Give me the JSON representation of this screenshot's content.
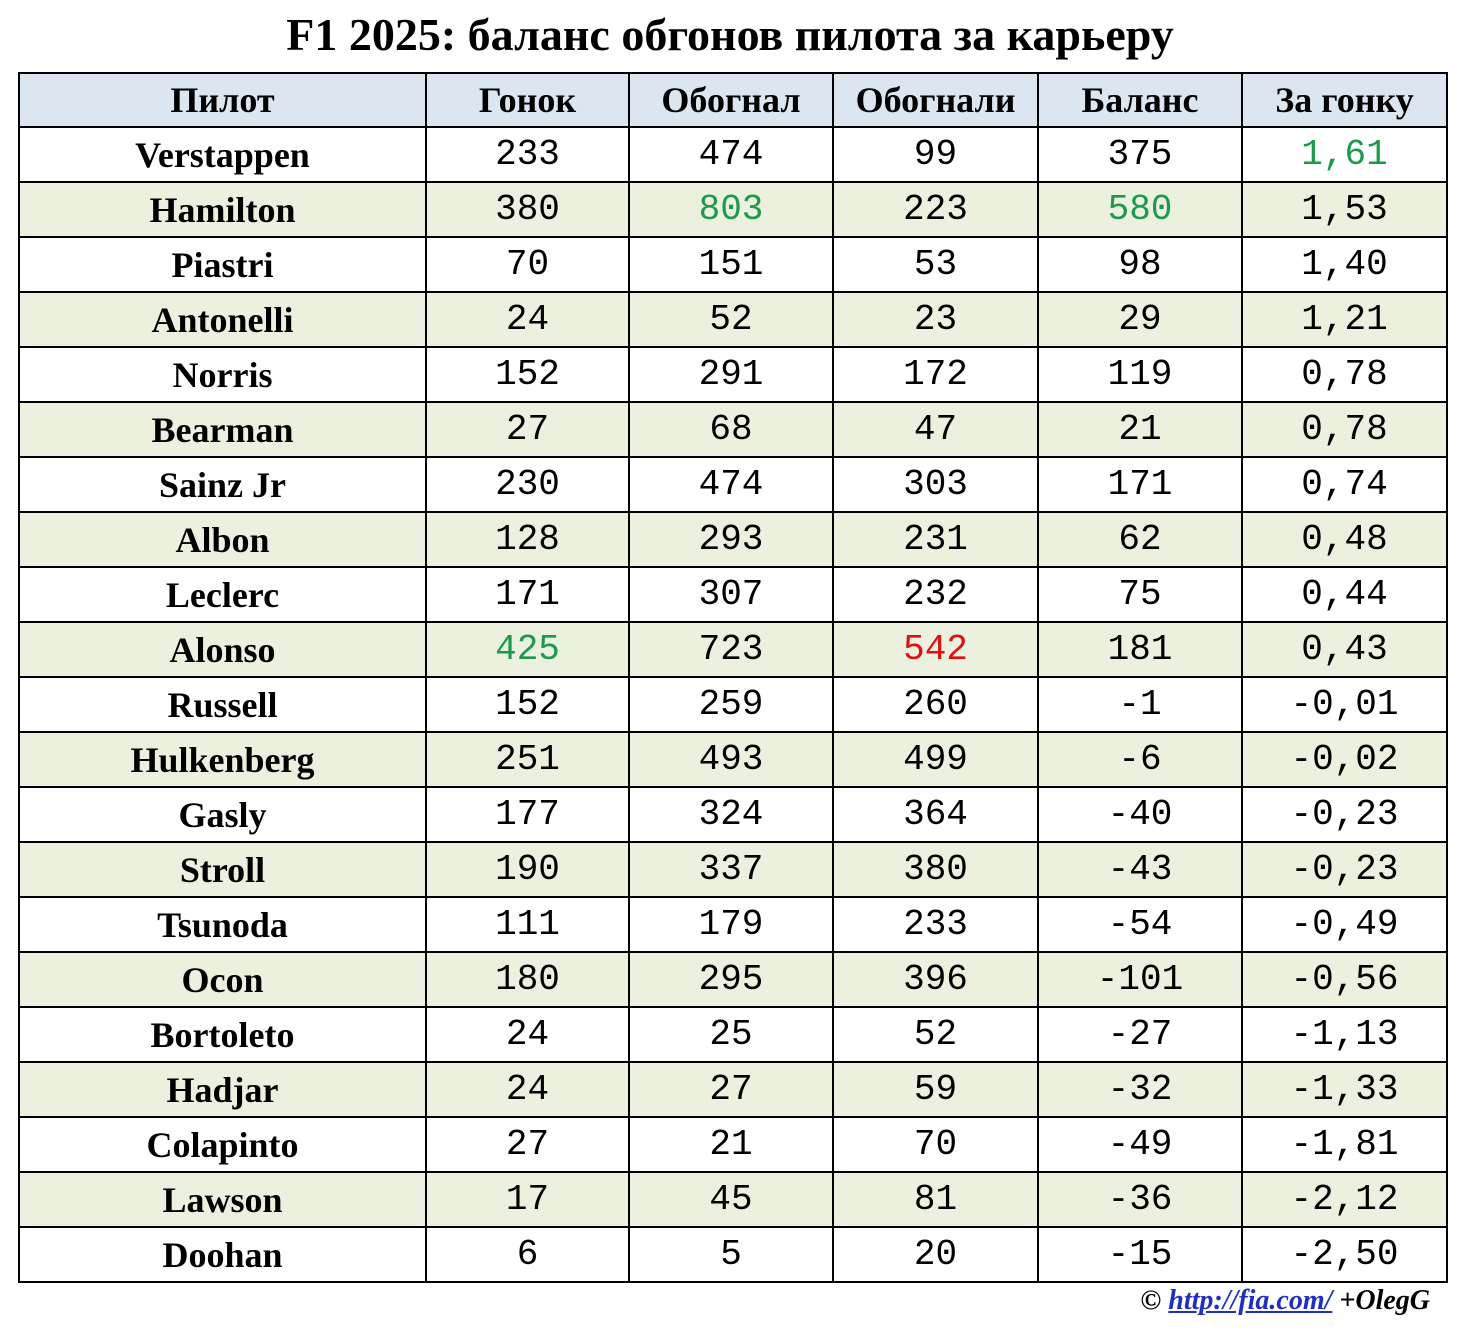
{
  "title": "F1 2025: баланс обгонов пилота за карьеру",
  "table": {
    "columns": [
      "Пилот",
      "Гонок",
      "Обогнал",
      "Обогнали",
      "Баланс",
      "За гонку"
    ],
    "rows": [
      [
        "Verstappen",
        "233",
        "474",
        "99",
        "375",
        "1,61"
      ],
      [
        "Hamilton",
        "380",
        "803",
        "223",
        "580",
        "1,53"
      ],
      [
        "Piastri",
        "70",
        "151",
        "53",
        "98",
        "1,40"
      ],
      [
        "Antonelli",
        "24",
        "52",
        "23",
        "29",
        "1,21"
      ],
      [
        "Norris",
        "152",
        "291",
        "172",
        "119",
        "0,78"
      ],
      [
        "Bearman",
        "27",
        "68",
        "47",
        "21",
        "0,78"
      ],
      [
        "Sainz Jr",
        "230",
        "474",
        "303",
        "171",
        "0,74"
      ],
      [
        "Albon",
        "128",
        "293",
        "231",
        "62",
        "0,48"
      ],
      [
        "Leclerc",
        "171",
        "307",
        "232",
        "75",
        "0,44"
      ],
      [
        "Alonso",
        "425",
        "723",
        "542",
        "181",
        "0,43"
      ],
      [
        "Russell",
        "152",
        "259",
        "260",
        "-1",
        "-0,01"
      ],
      [
        "Hulkenberg",
        "251",
        "493",
        "499",
        "-6",
        "-0,02"
      ],
      [
        "Gasly",
        "177",
        "324",
        "364",
        "-40",
        "-0,23"
      ],
      [
        "Stroll",
        "190",
        "337",
        "380",
        "-43",
        "-0,23"
      ],
      [
        "Tsunoda",
        "111",
        "179",
        "233",
        "-54",
        "-0,49"
      ],
      [
        "Ocon",
        "180",
        "295",
        "396",
        "-101",
        "-0,56"
      ],
      [
        "Bortoleto",
        "24",
        "25",
        "52",
        "-27",
        "-1,13"
      ],
      [
        "Hadjar",
        "24",
        "27",
        "59",
        "-32",
        "-1,33"
      ],
      [
        "Colapinto",
        "27",
        "21",
        "70",
        "-49",
        "-1,81"
      ],
      [
        "Lawson",
        "17",
        "45",
        "81",
        "-36",
        "-2,12"
      ],
      [
        "Doohan",
        "6",
        "5",
        "20",
        "-15",
        "-2,50"
      ]
    ]
  },
  "footer": {
    "copyright": "©",
    "link": "http://fia.com/",
    "author": "+OlegG"
  }
}
